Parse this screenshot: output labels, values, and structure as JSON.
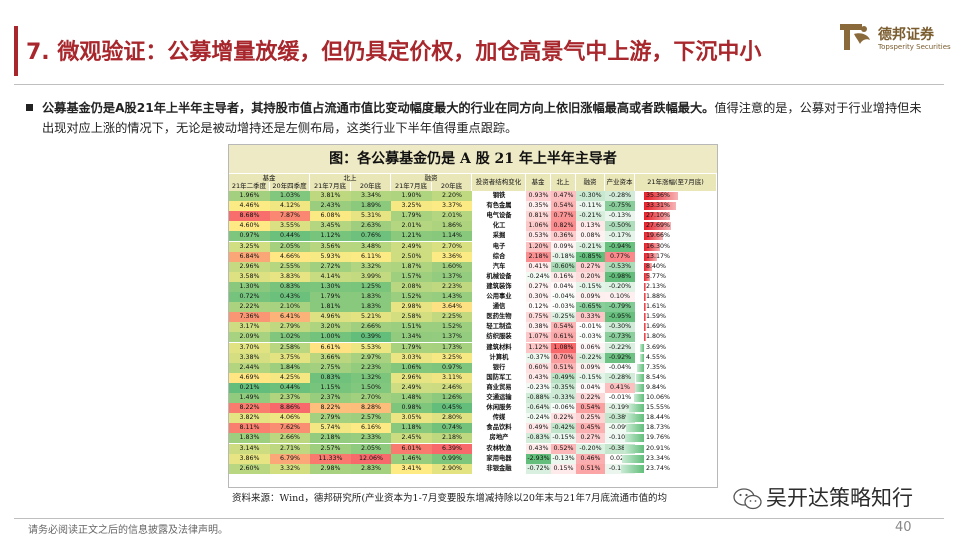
{
  "title": "7. 微观验证：公募增量放缓，但仍具定价权，加仓高景气中上游，下沉中小",
  "logo": {
    "cn": "德邦证券",
    "en": "Topsperity Securities"
  },
  "paragraph": {
    "bold": "公募基金仍是A股21年上半年主导者，其持股市值占流通市值比变动幅度最大的行业在同方向上依旧涨幅最高或者跌幅最大。",
    "rest": "值得注意的是，公募对于行业增持但未出现对应上涨的情况下，无论是被动增持还是左侧布局，这类行业下半年值得重点跟踪。"
  },
  "table": {
    "title": "图：各公募基金仍是 A 股 21 年上半年主导者",
    "group_headers": {
      "fund": "基金",
      "north": "北上",
      "margin": "融资",
      "change": "投资者结构变化"
    },
    "sub_headers": [
      "21年二季度",
      "20年四季度",
      "21年7月底",
      "20年底",
      "21年7月底",
      "20年底"
    ],
    "change_headers": [
      "基金",
      "北上",
      "融资",
      "产业资本",
      "21年涨幅(至7月底)"
    ],
    "colors": {
      "red": "#f8696b",
      "green": "#63be7b",
      "bar": "#e8202a"
    },
    "rows": [
      {
        "fund": [
          "1.96%",
          "1.03%"
        ],
        "north": [
          "3.81%",
          "3.34%"
        ],
        "margin": [
          "1.90%",
          "2.20%"
        ],
        "industry": "钢铁",
        "chg": [
          "0.93%",
          "0.47%",
          "-0.30%",
          "-0.28%"
        ],
        "ret": "35.36%",
        "retv": 35.36
      },
      {
        "fund": [
          "4.46%",
          "4.12%"
        ],
        "north": [
          "2.43%",
          "1.89%"
        ],
        "margin": [
          "3.25%",
          "3.37%"
        ],
        "industry": "有色金属",
        "chg": [
          "0.35%",
          "0.54%",
          "-0.11%",
          "-0.75%"
        ],
        "ret": "33.31%",
        "retv": 33.31
      },
      {
        "fund": [
          "8.68%",
          "7.87%"
        ],
        "north": [
          "6.08%",
          "5.31%"
        ],
        "margin": [
          "1.79%",
          "2.01%"
        ],
        "industry": "电气设备",
        "chg": [
          "0.81%",
          "0.77%",
          "-0.21%",
          "-0.13%"
        ],
        "ret": "27.10%",
        "retv": 27.1
      },
      {
        "fund": [
          "4.60%",
          "3.55%"
        ],
        "north": [
          "3.45%",
          "2.63%"
        ],
        "margin": [
          "2.01%",
          "1.86%"
        ],
        "industry": "化工",
        "chg": [
          "1.06%",
          "0.82%",
          "0.13%",
          "-0.50%"
        ],
        "ret": "27.69%",
        "retv": 27.69
      },
      {
        "fund": [
          "0.97%",
          "0.44%"
        ],
        "north": [
          "1.12%",
          "0.76%"
        ],
        "margin": [
          "1.21%",
          "1.14%"
        ],
        "industry": "采掘",
        "chg": [
          "0.53%",
          "0.36%",
          "0.08%",
          "-0.17%"
        ],
        "ret": "19.66%",
        "retv": 19.66
      },
      {
        "fund": [
          "3.25%",
          "2.05%"
        ],
        "north": [
          "3.56%",
          "3.48%"
        ],
        "margin": [
          "2.49%",
          "2.70%"
        ],
        "industry": "电子",
        "chg": [
          "1.20%",
          "0.09%",
          "-0.21%",
          "-0.94%"
        ],
        "ret": "16.30%",
        "retv": 16.3
      },
      {
        "fund": [
          "6.84%",
          "4.66%"
        ],
        "north": [
          "5.93%",
          "6.11%"
        ],
        "margin": [
          "2.50%",
          "3.36%"
        ],
        "industry": "综合",
        "chg": [
          "2.18%",
          "-0.18%",
          "-0.85%",
          "0.77%"
        ],
        "ret": "13.17%",
        "retv": 13.17
      },
      {
        "fund": [
          "2.96%",
          "2.55%"
        ],
        "north": [
          "2.72%",
          "3.32%"
        ],
        "margin": [
          "1.87%",
          "1.60%"
        ],
        "industry": "汽车",
        "chg": [
          "0.41%",
          "-0.60%",
          "0.27%",
          "-0.53%"
        ],
        "ret": "8.40%",
        "retv": 8.4
      },
      {
        "fund": [
          "3.58%",
          "3.83%"
        ],
        "north": [
          "4.14%",
          "3.99%"
        ],
        "margin": [
          "1.57%",
          "1.37%"
        ],
        "industry": "机械设备",
        "chg": [
          "-0.24%",
          "0.16%",
          "0.20%",
          "-0.98%"
        ],
        "ret": "5.77%",
        "retv": 5.77
      },
      {
        "fund": [
          "1.30%",
          "0.83%"
        ],
        "north": [
          "1.30%",
          "1.25%"
        ],
        "margin": [
          "2.08%",
          "2.23%"
        ],
        "industry": "建筑装饰",
        "chg": [
          "0.27%",
          "0.04%",
          "-0.15%",
          "-0.20%"
        ],
        "ret": "2.13%",
        "retv": 2.13
      },
      {
        "fund": [
          "0.72%",
          "0.43%"
        ],
        "north": [
          "1.79%",
          "1.83%"
        ],
        "margin": [
          "1.52%",
          "1.43%"
        ],
        "industry": "公用事业",
        "chg": [
          "0.30%",
          "-0.04%",
          "0.09%",
          "0.10%"
        ],
        "ret": "1.88%",
        "retv": 1.88
      },
      {
        "fund": [
          "2.22%",
          "2.10%"
        ],
        "north": [
          "1.81%",
          "1.83%"
        ],
        "margin": [
          "2.98%",
          "3.64%"
        ],
        "industry": "通信",
        "chg": [
          "0.12%",
          "-0.03%",
          "-0.65%",
          "-0.79%"
        ],
        "ret": "1.61%",
        "retv": 1.61
      },
      {
        "fund": [
          "7.36%",
          "6.41%"
        ],
        "north": [
          "4.96%",
          "5.21%"
        ],
        "margin": [
          "2.58%",
          "2.25%"
        ],
        "industry": "医药生物",
        "chg": [
          "0.75%",
          "-0.25%",
          "0.33%",
          "-0.95%"
        ],
        "ret": "1.59%",
        "retv": 1.59
      },
      {
        "fund": [
          "3.17%",
          "2.79%"
        ],
        "north": [
          "3.20%",
          "2.66%"
        ],
        "margin": [
          "1.51%",
          "1.52%"
        ],
        "industry": "轻工制造",
        "chg": [
          "0.38%",
          "0.54%",
          "-0.01%",
          "-0.30%"
        ],
        "ret": "1.69%",
        "retv": 1.69
      },
      {
        "fund": [
          "2.09%",
          "1.02%"
        ],
        "north": [
          "1.00%",
          "0.39%"
        ],
        "margin": [
          "1.34%",
          "1.37%"
        ],
        "industry": "纺织服装",
        "chg": [
          "1.07%",
          "0.61%",
          "-0.03%",
          "-0.73%"
        ],
        "ret": "1.80%",
        "retv": 1.8
      },
      {
        "fund": [
          "3.70%",
          "2.58%"
        ],
        "north": [
          "6.61%",
          "5.53%"
        ],
        "margin": [
          "1.79%",
          "1.73%"
        ],
        "industry": "建筑材料",
        "chg": [
          "1.12%",
          "1.08%",
          "0.06%",
          "-0.22%"
        ],
        "ret": "3.69%",
        "retv": -3.69
      },
      {
        "fund": [
          "3.38%",
          "3.75%"
        ],
        "north": [
          "3.66%",
          "2.97%"
        ],
        "margin": [
          "3.03%",
          "3.25%"
        ],
        "industry": "计算机",
        "chg": [
          "-0.37%",
          "0.70%",
          "-0.22%",
          "-0.92%"
        ],
        "ret": "4.55%",
        "retv": -4.55
      },
      {
        "fund": [
          "2.44%",
          "1.84%"
        ],
        "north": [
          "2.75%",
          "2.23%"
        ],
        "margin": [
          "1.06%",
          "0.97%"
        ],
        "industry": "银行",
        "chg": [
          "0.60%",
          "0.51%",
          "0.09%",
          "-0.04%"
        ],
        "ret": "7.35%",
        "retv": -7.35
      },
      {
        "fund": [
          "4.69%",
          "4.25%"
        ],
        "north": [
          "0.83%",
          "1.32%"
        ],
        "margin": [
          "2.96%",
          "3.11%"
        ],
        "industry": "国防军工",
        "chg": [
          "0.43%",
          "-0.49%",
          "-0.15%",
          "-0.28%"
        ],
        "ret": "8.54%",
        "retv": -8.54
      },
      {
        "fund": [
          "0.21%",
          "0.44%"
        ],
        "north": [
          "1.15%",
          "1.50%"
        ],
        "margin": [
          "2.49%",
          "2.46%"
        ],
        "industry": "商业贸易",
        "chg": [
          "-0.23%",
          "-0.35%",
          "0.04%",
          "0.41%"
        ],
        "ret": "9.84%",
        "retv": -9.84
      },
      {
        "fund": [
          "1.49%",
          "2.37%"
        ],
        "north": [
          "2.37%",
          "2.70%"
        ],
        "margin": [
          "1.48%",
          "1.26%"
        ],
        "industry": "交通运输",
        "chg": [
          "-0.88%",
          "-0.33%",
          "0.22%",
          "-0.01%"
        ],
        "ret": "10.06%",
        "retv": -10.06
      },
      {
        "fund": [
          "8.22%",
          "8.86%"
        ],
        "north": [
          "8.22%",
          "8.28%"
        ],
        "margin": [
          "0.98%",
          "0.45%"
        ],
        "industry": "休闲服务",
        "chg": [
          "-0.64%",
          "-0.06%",
          "0.54%",
          "-0.19%"
        ],
        "ret": "15.55%",
        "retv": -15.55
      },
      {
        "fund": [
          "3.82%",
          "4.06%"
        ],
        "north": [
          "2.79%",
          "2.57%"
        ],
        "margin": [
          "3.05%",
          "2.80%"
        ],
        "industry": "传媒",
        "chg": [
          "-0.24%",
          "0.22%",
          "0.25%",
          "-0.38%"
        ],
        "ret": "18.44%",
        "retv": -18.44
      },
      {
        "fund": [
          "8.11%",
          "7.62%"
        ],
        "north": [
          "5.74%",
          "6.16%"
        ],
        "margin": [
          "1.18%",
          "0.74%"
        ],
        "industry": "食品饮料",
        "chg": [
          "0.49%",
          "-0.42%",
          "0.45%",
          "-0.09%"
        ],
        "ret": "18.73%",
        "retv": -18.73
      },
      {
        "fund": [
          "1.83%",
          "2.66%"
        ],
        "north": [
          "2.18%",
          "2.33%"
        ],
        "margin": [
          "2.45%",
          "2.18%"
        ],
        "industry": "房地产",
        "chg": [
          "-0.83%",
          "-0.15%",
          "0.27%",
          "-0.10%"
        ],
        "ret": "19.76%",
        "retv": -19.76
      },
      {
        "fund": [
          "3.14%",
          "2.71%"
        ],
        "north": [
          "2.57%",
          "2.05%"
        ],
        "margin": [
          "6.01%",
          "6.39%"
        ],
        "industry": "农林牧渔",
        "chg": [
          "0.43%",
          "0.52%",
          "-0.20%",
          "-0.38%"
        ],
        "ret": "20.91%",
        "retv": -20.91
      },
      {
        "fund": [
          "3.86%",
          "6.79%"
        ],
        "north": [
          "11.33%",
          "12.06%"
        ],
        "margin": [
          "1.46%",
          "0.99%"
        ],
        "industry": "家用电器",
        "chg": [
          "-2.93%",
          "-0.13%",
          "0.46%",
          "0.02%"
        ],
        "ret": "23.34%",
        "retv": -23.34
      },
      {
        "fund": [
          "2.60%",
          "3.32%"
        ],
        "north": [
          "2.98%",
          "2.83%"
        ],
        "margin": [
          "3.41%",
          "2.90%"
        ],
        "industry": "非银金融",
        "chg": [
          "-0.72%",
          "0.15%",
          "0.51%",
          "-0.13%"
        ],
        "ret": "23.74%",
        "retv": -23.74
      }
    ]
  },
  "source": "资料来源：Wind，德邦研究所(产业资本为1-7月变要股东增减持除以20年末与21年7月底流通市值的均",
  "watermark": "吴开达策略知行",
  "disclaimer": "请务必阅读正文之后的信息披露及法律声明。",
  "page_number": "40"
}
